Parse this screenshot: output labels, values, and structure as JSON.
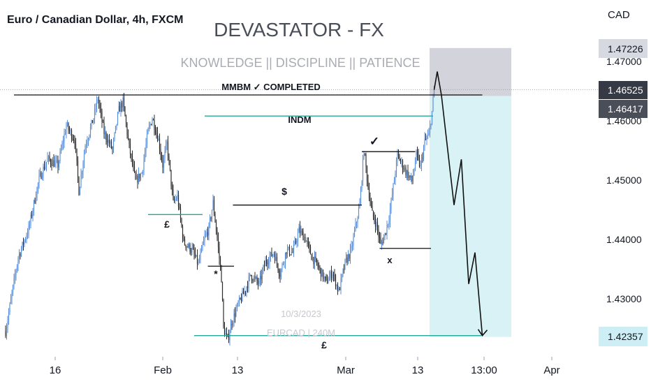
{
  "header": {
    "symbol_title": "Euro / Canadian Dollar, 4h, FXCM",
    "brand": "DEVASTATOR - FX",
    "tagline": "KNOWLEDGE || DISCIPLINE  ||  PATIENCE",
    "currency": "CAD"
  },
  "watermark": {
    "date": "10/3/2023",
    "pair": "EURCAD | 240M"
  },
  "annotations": {
    "mmbm": "MMBM ✓ COMPLETED",
    "indm": "INDM",
    "dollar": "$",
    "pound_left": "£",
    "pound_bottom": "£",
    "star": "*",
    "cross": "x",
    "check": "✓"
  },
  "price_badges": {
    "target_top": "1.47226",
    "current": "1.46525",
    "entry": "1.46417",
    "target_bottom": "1.42357"
  },
  "colors": {
    "bull": "#5b8fd9",
    "bear": "#2b2b2b",
    "zone_red": "#d3d3dc",
    "zone_green": "#d9f2f6",
    "level_teal": "#26a69a",
    "badge_dark": "#363a45",
    "badge_gray": "#d6d9e0",
    "badge_cyan": "#cdeef4"
  },
  "chart_data": {
    "type": "candlestick",
    "title": "Euro / Canadian Dollar, 4h, FXCM",
    "y_axis": {
      "unit": "CAD",
      "ticks": [
        "1.47000",
        "1.46000",
        "1.45000",
        "1.44000",
        "1.43000"
      ],
      "range": [
        1.4175,
        1.4795
      ]
    },
    "x_axis": {
      "ticks": [
        "16",
        "Feb",
        "13",
        "Mar",
        "13",
        "13:00",
        "Apr"
      ]
    },
    "price_path": [
      [
        0,
        1.4245
      ],
      [
        12,
        1.437
      ],
      [
        22,
        1.4418
      ],
      [
        32,
        1.4502
      ],
      [
        40,
        1.4535
      ],
      [
        50,
        1.4525
      ],
      [
        58,
        1.4592
      ],
      [
        66,
        1.4568
      ],
      [
        70,
        1.4482
      ],
      [
        76,
        1.4558
      ],
      [
        84,
        1.4605
      ],
      [
        88,
        1.4638
      ],
      [
        94,
        1.458
      ],
      [
        102,
        1.4552
      ],
      [
        108,
        1.4618
      ],
      [
        112,
        1.4632
      ],
      [
        118,
        1.4555
      ],
      [
        124,
        1.4498
      ],
      [
        130,
        1.4512
      ],
      [
        136,
        1.4582
      ],
      [
        140,
        1.4605
      ],
      [
        146,
        1.4568
      ],
      [
        150,
        1.4525
      ],
      [
        154,
        1.4562
      ],
      [
        160,
        1.4462
      ],
      [
        164,
        1.4472
      ],
      [
        170,
        1.4395
      ],
      [
        178,
        1.4382
      ],
      [
        184,
        1.4358
      ],
      [
        190,
        1.4402
      ],
      [
        194,
        1.4418
      ],
      [
        198,
        1.4462
      ],
      [
        202,
        1.4402
      ],
      [
        206,
        1.4335
      ],
      [
        208,
        1.425
      ],
      [
        212,
        1.423
      ],
      [
        216,
        1.4262
      ],
      [
        222,
        1.429
      ],
      [
        228,
        1.4312
      ],
      [
        234,
        1.434
      ],
      [
        242,
        1.4325
      ],
      [
        248,
        1.4362
      ],
      [
        256,
        1.4378
      ],
      [
        262,
        1.4342
      ],
      [
        268,
        1.4382
      ],
      [
        274,
        1.4378
      ],
      [
        280,
        1.4415
      ],
      [
        286,
        1.4402
      ],
      [
        292,
        1.4372
      ],
      [
        298,
        1.4355
      ],
      [
        306,
        1.4328
      ],
      [
        312,
        1.4345
      ],
      [
        318,
        1.4312
      ],
      [
        324,
        1.436
      ],
      [
        330,
        1.4382
      ],
      [
        334,
        1.4422
      ],
      [
        338,
        1.4458
      ],
      [
        342,
        1.4552
      ],
      [
        346,
        1.4488
      ],
      [
        350,
        1.4442
      ],
      [
        354,
        1.4425
      ],
      [
        358,
        1.439
      ],
      [
        362,
        1.4408
      ],
      [
        366,
        1.4438
      ],
      [
        370,
        1.4488
      ],
      [
        374,
        1.4542
      ],
      [
        378,
        1.4528
      ],
      [
        382,
        1.4515
      ],
      [
        388,
        1.4498
      ],
      [
        392,
        1.4542
      ],
      [
        396,
        1.4522
      ],
      [
        400,
        1.4565
      ],
      [
        404,
        1.4575
      ],
      [
        407,
        1.4615
      ],
      [
        409,
        1.4652
      ]
    ],
    "levels": [
      {
        "label": "MMBM ✓ COMPLETED",
        "price": 1.46435,
        "from": 8,
        "to": 455
      },
      {
        "label": "INDM",
        "price": 1.4608,
        "from": 190,
        "to": 408
      },
      {
        "label": "£",
        "price": 1.4442,
        "from": 136,
        "to": 188
      },
      {
        "label": "$",
        "price": 1.4458,
        "from": 217,
        "to": 340
      },
      {
        "label": "*",
        "price": 1.4355,
        "from": 193,
        "to": 218
      },
      {
        "label": "✓",
        "price": 1.4548,
        "from": 340,
        "to": 391
      },
      {
        "label": "x",
        "price": 1.4385,
        "from": 357,
        "to": 406
      },
      {
        "label": "£",
        "price": 1.4238,
        "from": 180,
        "to": 454
      }
    ],
    "projection": [
      [
        409,
        1.4652
      ],
      [
        412,
        1.4683
      ],
      [
        416,
        1.4643
      ],
      [
        428,
        1.4458
      ],
      [
        435,
        1.4535
      ],
      [
        442,
        1.4325
      ],
      [
        448,
        1.4378
      ],
      [
        455,
        1.4238
      ]
    ],
    "position_zones": {
      "stop": {
        "top": 1.47226,
        "bottom": 1.46417
      },
      "target": {
        "top": 1.46417,
        "bottom": 1.42357
      }
    }
  }
}
